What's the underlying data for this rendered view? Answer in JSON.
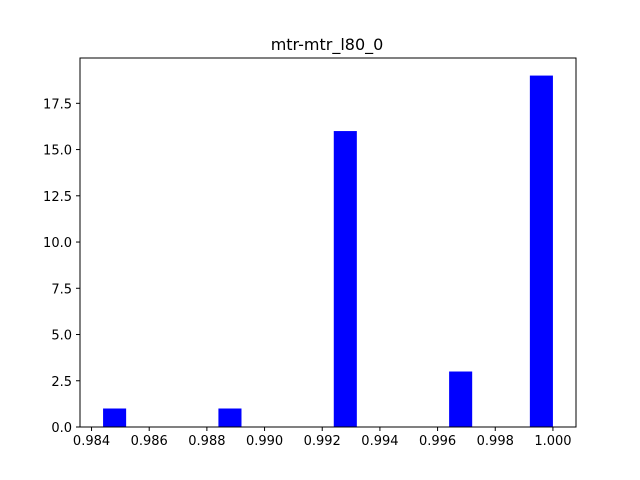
{
  "chart_data": {
    "type": "bar",
    "title": "mtr-mtr_l80_0",
    "xlabel": "",
    "ylabel": "",
    "xlim": [
      0.9836,
      1.0008
    ],
    "ylim": [
      0,
      19.95
    ],
    "bar_color": "#0000ff",
    "bar_width": 0.0008,
    "bars": [
      {
        "x": 0.9848,
        "value": 1
      },
      {
        "x": 0.9888,
        "value": 1
      },
      {
        "x": 0.9928,
        "value": 16
      },
      {
        "x": 0.9968,
        "value": 3
      },
      {
        "x": 0.9996,
        "value": 19
      }
    ],
    "x_ticks": [
      {
        "value": 0.984,
        "label": "0.984"
      },
      {
        "value": 0.986,
        "label": "0.986"
      },
      {
        "value": 0.988,
        "label": "0.988"
      },
      {
        "value": 0.99,
        "label": "0.990"
      },
      {
        "value": 0.992,
        "label": "0.992"
      },
      {
        "value": 0.994,
        "label": "0.994"
      },
      {
        "value": 0.996,
        "label": "0.996"
      },
      {
        "value": 0.998,
        "label": "0.998"
      },
      {
        "value": 1.0,
        "label": "1.000"
      }
    ],
    "y_ticks": [
      {
        "value": 0.0,
        "label": "0.0"
      },
      {
        "value": 2.5,
        "label": "2.5"
      },
      {
        "value": 5.0,
        "label": "5.0"
      },
      {
        "value": 7.5,
        "label": "7.5"
      },
      {
        "value": 10.0,
        "label": "10.0"
      },
      {
        "value": 12.5,
        "label": "12.5"
      },
      {
        "value": 15.0,
        "label": "15.0"
      },
      {
        "value": 17.5,
        "label": "17.5"
      }
    ],
    "grid": false,
    "legend": "none"
  }
}
